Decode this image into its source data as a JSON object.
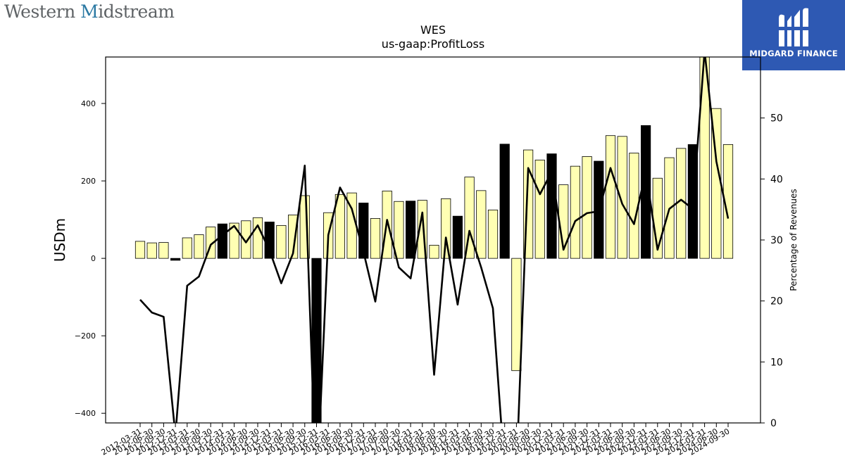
{
  "brand": {
    "left_logo": {
      "part1": "Western ",
      "part2": "M",
      "part3": "idstream"
    },
    "right_badge": {
      "label": "MIDGARD FINANCE",
      "icon": "midgard-m-logo-icon"
    }
  },
  "chart_data": {
    "type": "bar",
    "title": "WES",
    "subtitle": "us-gaap:ProfitLoss",
    "ylabel": "USDm",
    "y2label": "Percentage of Revenues",
    "ylim": [
      -425,
      520
    ],
    "y2lim": [
      0,
      60
    ],
    "yticks": [
      -400,
      -200,
      0,
      200,
      400
    ],
    "y2ticks": [
      0,
      10,
      20,
      30,
      40,
      50
    ],
    "colors": {
      "bar_default": "#ffffb3",
      "bar_highlight": "#000000",
      "line": "#000000"
    },
    "categories": [
      "2012-03-31",
      "2012-06-30",
      "2012-09-30",
      "2012-12-31",
      "2013-03-31",
      "2013-06-30",
      "2013-09-30",
      "2013-12-31",
      "2014-03-31",
      "2014-06-30",
      "2014-09-30",
      "2014-12-31",
      "2015-03-31",
      "2015-06-30",
      "2015-09-30",
      "2015-12-31",
      "2016-03-31",
      "2016-06-30",
      "2016-09-30",
      "2016-12-31",
      "2017-03-31",
      "2017-06-30",
      "2017-09-30",
      "2017-12-31",
      "2018-03-31",
      "2018-06-30",
      "2018-09-30",
      "2018-12-31",
      "2019-03-31",
      "2019-06-30",
      "2019-09-30",
      "2019-12-31",
      "2020-03-31",
      "2020-06-30",
      "2020-09-30",
      "2020-12-31",
      "2021-03-31",
      "2021-06-30",
      "2021-09-30",
      "2021-12-31",
      "2022-03-31",
      "2022-06-30",
      "2022-09-30",
      "2022-12-31",
      "2023-03-31",
      "2023-06-30",
      "2023-09-30",
      "2023-12-31",
      "2024-03-31",
      "2024-06-30",
      "2024-09-30"
    ],
    "highlight_quarter": "12-31",
    "series": [
      {
        "kind": "bar",
        "axis": "left",
        "values": [
          44,
          40,
          41,
          -5,
          53,
          61,
          81,
          89,
          91,
          97,
          105,
          94,
          85,
          112,
          162,
          -460,
          118,
          165,
          169,
          143,
          103,
          174,
          147,
          148,
          150,
          34,
          154,
          109,
          210,
          175,
          125,
          295,
          -290,
          280,
          254,
          270,
          190,
          238,
          263,
          251,
          317,
          315,
          272,
          343,
          207,
          260,
          284,
          294,
          520,
          387,
          294
        ]
      },
      {
        "kind": "line",
        "axis": "right",
        "values": [
          20.2,
          18.1,
          17.4,
          -2,
          22.5,
          24,
          29.2,
          30.8,
          32.3,
          29.6,
          32.4,
          28.3,
          22.9,
          27.8,
          42.2,
          -12,
          30.8,
          38.6,
          35.1,
          28,
          19.9,
          33.3,
          25.5,
          23.7,
          34.5,
          7.9,
          30.4,
          19.4,
          31.5,
          25.5,
          18.8,
          -8,
          -8,
          41.8,
          37.5,
          41.2,
          28.4,
          33.1,
          34.4,
          34.7,
          41.8,
          35.9,
          32.6,
          41.2,
          28.4,
          35.1,
          36.6,
          35.1,
          61,
          42.9,
          33.5
        ]
      }
    ],
    "grid": false,
    "legend": "none"
  }
}
